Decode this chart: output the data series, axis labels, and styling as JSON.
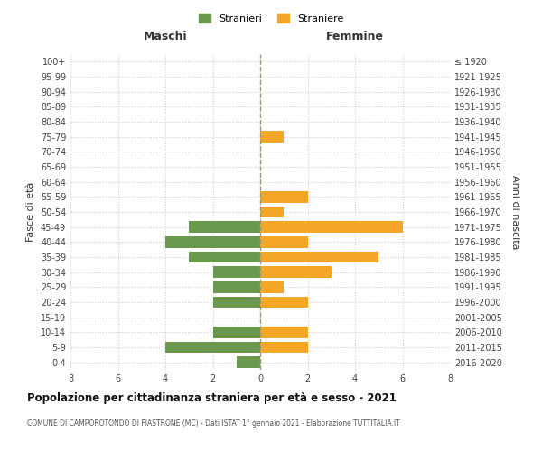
{
  "age_groups": [
    "100+",
    "95-99",
    "90-94",
    "85-89",
    "80-84",
    "75-79",
    "70-74",
    "65-69",
    "60-64",
    "55-59",
    "50-54",
    "45-49",
    "40-44",
    "35-39",
    "30-34",
    "25-29",
    "20-24",
    "15-19",
    "10-14",
    "5-9",
    "0-4"
  ],
  "birth_years": [
    "≤ 1920",
    "1921-1925",
    "1926-1930",
    "1931-1935",
    "1936-1940",
    "1941-1945",
    "1946-1950",
    "1951-1955",
    "1956-1960",
    "1961-1965",
    "1966-1970",
    "1971-1975",
    "1976-1980",
    "1981-1985",
    "1986-1990",
    "1991-1995",
    "1996-2000",
    "2001-2005",
    "2006-2010",
    "2011-2015",
    "2016-2020"
  ],
  "stranieri_maschi": [
    0,
    0,
    0,
    0,
    0,
    0,
    0,
    0,
    0,
    0,
    0,
    3,
    4,
    3,
    2,
    2,
    2,
    0,
    2,
    4,
    1
  ],
  "straniere_femmine": [
    0,
    0,
    0,
    0,
    0,
    1,
    0,
    0,
    0,
    2,
    1,
    6,
    2,
    5,
    3,
    1,
    2,
    0,
    2,
    2,
    0
  ],
  "color_maschi": "#6a994e",
  "color_femmine": "#f4a726",
  "title": "Popolazione per cittadinanza straniera per età e sesso - 2021",
  "subtitle": "COMUNE DI CAMPOROTONDO DI FIASTRONE (MC) - Dati ISTAT 1° gennaio 2021 - Elaborazione TUTTITALIA.IT",
  "ylabel_left": "Fasce di età",
  "ylabel_right": "Anni di nascita",
  "xlabel_left": "Maschi",
  "xlabel_right": "Femmine",
  "legend_maschi": "Stranieri",
  "legend_femmine": "Straniere",
  "xlim": 8,
  "background_color": "#ffffff",
  "grid_color": "#cccccc",
  "bar_height": 0.75,
  "dashed_line_color": "#999977"
}
